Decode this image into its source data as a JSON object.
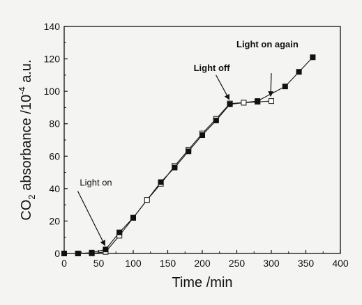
{
  "chart_data": {
    "type": "scatter",
    "xlabel": "Time /min",
    "ylabel": {
      "prefix": "CO",
      "subscript": "2",
      "middle": " absorbance /10",
      "superscript": "-4",
      "suffix": " a.u."
    },
    "xlim": [
      0,
      400
    ],
    "ylim": [
      0,
      140
    ],
    "x_ticks": [
      "0",
      "50",
      "100",
      "150",
      "200",
      "250",
      "300",
      "350",
      "400"
    ],
    "y_ticks": [
      "0",
      "20",
      "40",
      "60",
      "80",
      "100",
      "120",
      "140"
    ],
    "grid": false,
    "series": [
      {
        "marker": "filled-square",
        "x": [
          0,
          20,
          40,
          60,
          80,
          100,
          140,
          160,
          180,
          200,
          220,
          240,
          280,
          320,
          340,
          360
        ],
        "y": [
          0,
          0,
          0.5,
          2.5,
          13,
          22,
          44,
          53,
          63,
          73,
          82,
          92,
          94,
          103,
          112,
          121
        ]
      },
      {
        "marker": "open-square",
        "x": [
          0,
          20,
          40,
          60,
          80,
          100,
          120,
          140,
          160,
          180,
          200,
          220,
          240,
          260,
          280,
          300
        ],
        "y": [
          0,
          0,
          0,
          1,
          11,
          22,
          33,
          43,
          54,
          64,
          74,
          83,
          92.5,
          93,
          93.5,
          94
        ]
      }
    ],
    "annotations": [
      {
        "text": "Light on",
        "bold": false,
        "at": [
          60,
          2
        ]
      },
      {
        "text": "Light off",
        "bold": true,
        "at": [
          240,
          92
        ]
      },
      {
        "text": "Light on again",
        "bold": true,
        "at": [
          300,
          94
        ]
      }
    ]
  }
}
